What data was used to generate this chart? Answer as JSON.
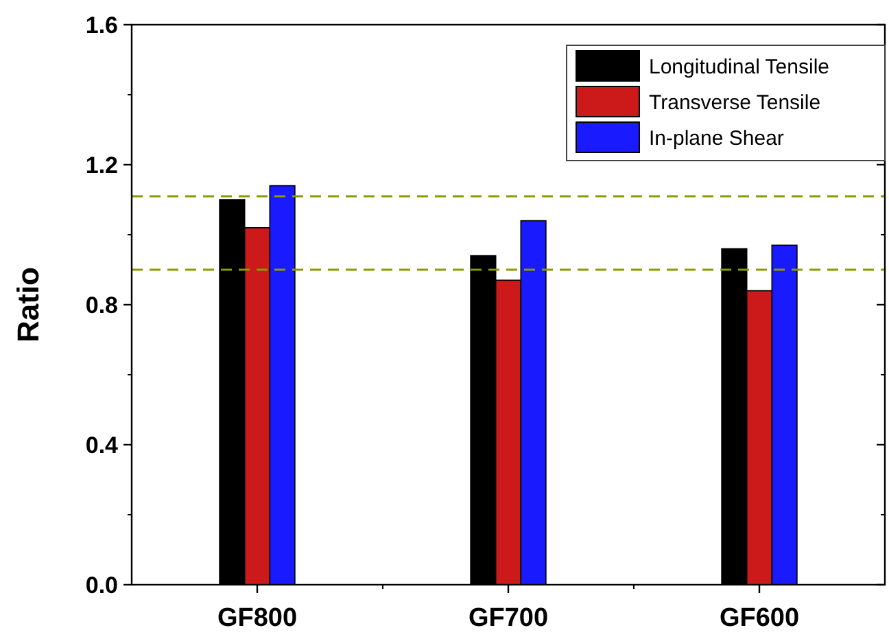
{
  "chart_data": {
    "type": "bar",
    "ylabel": "Ratio",
    "categories": [
      "GF800",
      "GF700",
      "GF600"
    ],
    "series": [
      {
        "name": "Longitudinal Tensile",
        "color": "#000000",
        "values": [
          1.1,
          0.94,
          0.96
        ]
      },
      {
        "name": "Transverse Tensile",
        "color": "#cc1a1a",
        "values": [
          1.02,
          0.87,
          0.84
        ]
      },
      {
        "name": "In-plane Shear",
        "color": "#1a1aff",
        "values": [
          1.14,
          1.04,
          0.97
        ]
      }
    ],
    "ylim": [
      0,
      1.6
    ],
    "yticks": [
      {
        "value": 0,
        "label": "0.0"
      },
      0.4,
      0.8,
      1.2,
      1.6
    ],
    "ref_lines": [
      {
        "axis": "y",
        "value": 1.11,
        "color": "#8a9a00",
        "line_style": "dashed"
      },
      {
        "axis": "y",
        "value": 0.9,
        "color": "#8a9a00",
        "line_style": "dashed"
      }
    ],
    "legend": "top right",
    "grid": false
  }
}
